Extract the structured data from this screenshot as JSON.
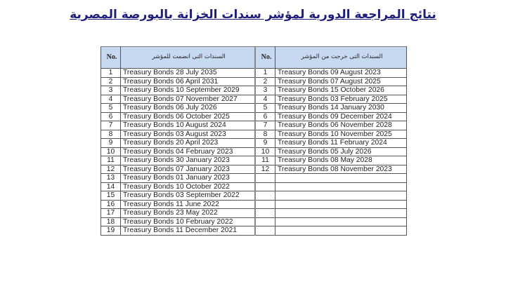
{
  "title": "نتائج المراجعة الدورية  لمؤشر سندات الخزانة بالبورصة المصرية",
  "table": {
    "headers": {
      "no1": "No.",
      "added": "السندات التى انضمت للمؤشر",
      "no2": "No.",
      "removed": "السندات التى خرجت من المؤشر"
    },
    "added": [
      {
        "no": "1",
        "bond": "Treasury Bonds 28 July 2035"
      },
      {
        "no": "2",
        "bond": "Treasury Bonds 06 April 2031"
      },
      {
        "no": "3",
        "bond": "Treasury Bonds 10  September  2029"
      },
      {
        "no": "4",
        "bond": "Treasury Bonds 07 November 2027"
      },
      {
        "no": "5",
        "bond": "Treasury Bonds 06 July 2026"
      },
      {
        "no": "6",
        "bond": "Treasury Bonds 06 October 2025"
      },
      {
        "no": "7",
        "bond": "Treasury Bonds 10 August 2024"
      },
      {
        "no": "8",
        "bond": "Treasury Bonds 03 August 2023"
      },
      {
        "no": "9",
        "bond": "Treasury Bonds 20 April 2023"
      },
      {
        "no": "10",
        "bond": "Treasury Bonds 04 February 2023"
      },
      {
        "no": "11",
        "bond": "Treasury Bonds 30 January 2023"
      },
      {
        "no": "12",
        "bond": "Treasury Bonds 07 January  2023"
      },
      {
        "no": "13",
        "bond": "Treasury Bonds 01 January 2023"
      },
      {
        "no": "14",
        "bond": "Treasury Bonds 10 October 2022"
      },
      {
        "no": "15",
        "bond": "Treasury Bonds 03 September 2022"
      },
      {
        "no": "16",
        "bond": "Treasury Bonds 11 June 2022"
      },
      {
        "no": "17",
        "bond": "Treasury Bonds 23 May 2022"
      },
      {
        "no": "18",
        "bond": "Treasury Bonds 10 February 2022"
      },
      {
        "no": "19",
        "bond": "Treasury Bonds 11 December 2021"
      }
    ],
    "removed": [
      {
        "no": "1",
        "bond": "Treasury Bonds 09 August 2023"
      },
      {
        "no": "2",
        "bond": "Treasury Bonds 07 August 2025"
      },
      {
        "no": "3",
        "bond": "Treasury Bonds 15 October 2026"
      },
      {
        "no": "4",
        "bond": "Treasury Bonds 03 February 2025"
      },
      {
        "no": "5",
        "bond": "Treasury Bonds 14 January 2030"
      },
      {
        "no": "6",
        "bond": "Treasury Bonds 09 December 2024"
      },
      {
        "no": "7",
        "bond": "Treasury Bonds 06 November 2028"
      },
      {
        "no": "8",
        "bond": "Treasury Bonds 10 November 2025"
      },
      {
        "no": "9",
        "bond": "Treasury Bonds 11 February 2024"
      },
      {
        "no": "10",
        "bond": "Treasury Bonds 05 July 2026"
      },
      {
        "no": "11",
        "bond": "Treasury Bonds 08 May 2028"
      },
      {
        "no": "12",
        "bond": "Treasury Bonds 08 November 2023"
      }
    ]
  }
}
